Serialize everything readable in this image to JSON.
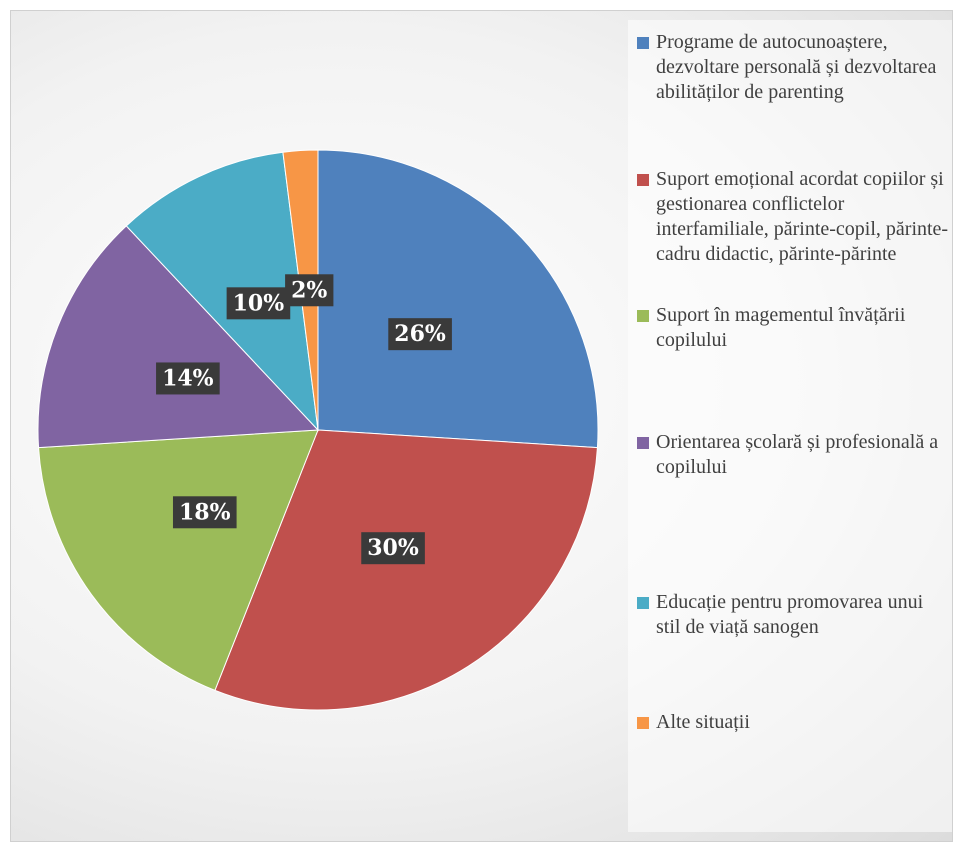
{
  "chart_data": {
    "type": "pie",
    "categories": [
      "Programe de autocunoaștere, dezvoltare personală și dezvoltarea abilităților de parenting",
      "Suport emoțional acordat copiilor și gestionarea conflictelor interfamiliale, părinte-copil, părinte-cadru didactic, părinte-părinte",
      "Suport în magementul învățării copilului",
      "Orientarea școlară și profesională a copilului",
      "Educație pentru promovarea unui stil de viață sanogen",
      "Alte situații"
    ],
    "values": [
      26,
      30,
      18,
      14,
      10,
      2
    ],
    "value_labels": [
      "26%",
      "30%",
      "18%",
      "14%",
      "10%",
      "2%"
    ],
    "colors": [
      "#4f81bd",
      "#c0504d",
      "#9bbb59",
      "#8064a2",
      "#4bacc6",
      "#f79646"
    ],
    "legend": "right"
  }
}
